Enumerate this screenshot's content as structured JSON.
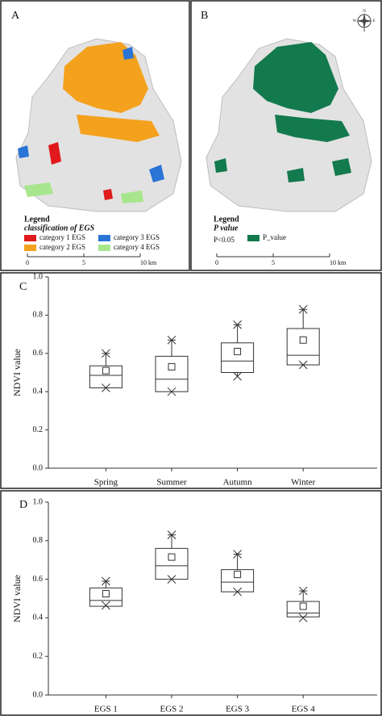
{
  "maps": [
    {
      "label": "A",
      "legend_title": "Legend",
      "legend_subtitle": "classification of EGS",
      "legend_items": [
        {
          "name": "category 1 EGS",
          "color": "#e0191c"
        },
        {
          "name": "category 3 EGS",
          "color": "#2a74d6"
        },
        {
          "name": "category 2 EGS",
          "color": "#f4a21e"
        },
        {
          "name": "category 4 EGS",
          "color": "#a8e68e"
        }
      ],
      "scale_labels": [
        "0",
        "5",
        "10 km"
      ]
    },
    {
      "label": "B",
      "legend_title": "Legend",
      "legend_subtitle": "P value",
      "legend_note": "P<0.05",
      "legend_items": [
        {
          "name": "P_value",
          "color": "#137a4d"
        }
      ],
      "scale_labels": [
        "0",
        "5",
        "10 km"
      ],
      "compass": [
        "N",
        "E",
        "S",
        "W"
      ]
    }
  ],
  "chart_data": [
    {
      "type": "box",
      "panel_label": "C",
      "ylabel": "NDVI value",
      "categories": [
        "Spring",
        "Summer",
        "Autumn",
        "Winter"
      ],
      "min": [
        0.42,
        0.4,
        0.48,
        0.54
      ],
      "q1": [
        0.42,
        0.4,
        0.5,
        0.54
      ],
      "median": [
        0.485,
        0.465,
        0.56,
        0.59
      ],
      "q3": [
        0.535,
        0.585,
        0.655,
        0.73
      ],
      "max": [
        0.6,
        0.67,
        0.75,
        0.83
      ],
      "mean": [
        0.51,
        0.53,
        0.61,
        0.67
      ],
      "ylim": [
        0,
        1
      ],
      "yticks": [
        {
          "value": 0,
          "label": "0.0"
        },
        0.2,
        0.4,
        0.6,
        0.8,
        {
          "value": 1,
          "label": "1.0"
        }
      ],
      "color": "#333333"
    },
    {
      "type": "box",
      "panel_label": "D",
      "ylabel": "NDVI value",
      "categories": [
        "EGS 1",
        "EGS 2",
        "EGS 3",
        "EGS 4"
      ],
      "min": [
        0.465,
        0.6,
        0.535,
        0.4
      ],
      "q1": [
        0.46,
        0.6,
        0.535,
        0.405
      ],
      "median": [
        0.49,
        0.67,
        0.585,
        0.425
      ],
      "q3": [
        0.555,
        0.76,
        0.65,
        0.485
      ],
      "max": [
        0.59,
        0.83,
        0.73,
        0.54
      ],
      "mean": [
        0.525,
        0.715,
        0.625,
        0.46
      ],
      "ylim": [
        0,
        1
      ],
      "yticks": [
        {
          "value": 0,
          "label": "0.0"
        },
        0.2,
        0.4,
        0.6,
        0.8,
        {
          "value": 1,
          "label": "1.0"
        }
      ],
      "color": "#333333"
    }
  ]
}
